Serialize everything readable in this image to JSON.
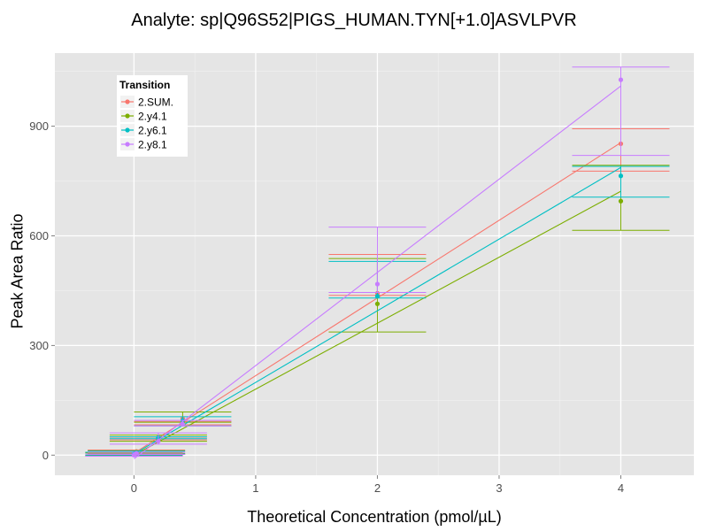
{
  "chart_data": {
    "type": "line",
    "title": "Analyte: sp|Q96S52|PIGS_HUMAN.TYN[+1.0]ASVLPVR",
    "xlabel": "Theoretical Concentration (pmol/µL)",
    "ylabel": "Peak Area Ratio",
    "xlim": [
      -0.65,
      4.6
    ],
    "ylim": [
      -55,
      1100
    ],
    "x_ticks": [
      0,
      1,
      2,
      3,
      4
    ],
    "y_ticks": [
      0,
      300,
      600,
      900
    ],
    "grid": true,
    "legend": {
      "title": "Transition",
      "position": "top-left"
    },
    "series": [
      {
        "name": "2.SUM.",
        "color": "#F8766D",
        "points": [
          {
            "x": 0,
            "y": 2,
            "err_low": -3,
            "err_high": 7,
            "cap_halfwidth": 0.4
          },
          {
            "x": 0.02,
            "y": 10,
            "err_low": 5,
            "err_high": 14,
            "cap_halfwidth": 0.4
          },
          {
            "x": 0.2,
            "y": 45,
            "err_low": 42,
            "err_high": 49,
            "cap_halfwidth": 0.4
          },
          {
            "x": 0.4,
            "y": 100,
            "err_low": 83,
            "err_high": 92,
            "cap_halfwidth": 0.4
          },
          {
            "x": 2,
            "y": 443,
            "err_low": 437,
            "err_high": 549,
            "cap_halfwidth": 0.4
          },
          {
            "x": 4,
            "y": 852,
            "err_low": 777,
            "err_high": 893,
            "cap_halfwidth": 0.4
          }
        ],
        "fit_line": [
          [
            0,
            5
          ],
          [
            4,
            855
          ]
        ]
      },
      {
        "name": "2.y4.1",
        "color": "#7CAE00",
        "points": [
          {
            "x": 0,
            "y": 3,
            "err_low": -1,
            "err_high": 6,
            "cap_halfwidth": 0.4
          },
          {
            "x": 0.02,
            "y": 8,
            "err_low": 4,
            "err_high": 12,
            "cap_halfwidth": 0.4
          },
          {
            "x": 0.2,
            "y": 40,
            "err_low": 38,
            "err_high": 55,
            "cap_halfwidth": 0.4
          },
          {
            "x": 0.4,
            "y": 90,
            "err_low": 90,
            "err_high": 118,
            "cap_halfwidth": 0.4
          },
          {
            "x": 2,
            "y": 414,
            "err_low": 337,
            "err_high": 538,
            "cap_halfwidth": 0.4
          },
          {
            "x": 4,
            "y": 695,
            "err_low": 615,
            "err_high": 793,
            "cap_halfwidth": 0.4
          }
        ],
        "fit_line": [
          [
            0,
            0
          ],
          [
            4,
            722
          ]
        ]
      },
      {
        "name": "2.y6.1",
        "color": "#00BFC4",
        "points": [
          {
            "x": 0,
            "y": 4,
            "err_low": 0,
            "err_high": 8,
            "cap_halfwidth": 0.4
          },
          {
            "x": 0.02,
            "y": 7,
            "err_low": 3,
            "err_high": 11,
            "cap_halfwidth": 0.4
          },
          {
            "x": 0.2,
            "y": 48,
            "err_low": 45,
            "err_high": 50,
            "cap_halfwidth": 0.4
          },
          {
            "x": 0.4,
            "y": 95,
            "err_low": 80,
            "err_high": 105,
            "cap_halfwidth": 0.4
          },
          {
            "x": 2,
            "y": 435,
            "err_low": 430,
            "err_high": 530,
            "cap_halfwidth": 0.4
          },
          {
            "x": 4,
            "y": 764,
            "err_low": 706,
            "err_high": 790,
            "cap_halfwidth": 0.4
          }
        ],
        "fit_line": [
          [
            0,
            3
          ],
          [
            4,
            787
          ]
        ]
      },
      {
        "name": "2.y8.1",
        "color": "#C77CFF",
        "points": [
          {
            "x": 0,
            "y": 0,
            "err_low": -3,
            "err_high": 3,
            "cap_halfwidth": 0.4
          },
          {
            "x": 0.02,
            "y": 5,
            "err_low": 2,
            "err_high": 8,
            "cap_halfwidth": 0.4
          },
          {
            "x": 0.2,
            "y": 38,
            "err_low": 30,
            "err_high": 61,
            "cap_halfwidth": 0.4
          },
          {
            "x": 0.4,
            "y": 85,
            "err_low": 80,
            "err_high": 95,
            "cap_halfwidth": 0.4
          },
          {
            "x": 2,
            "y": 468,
            "err_low": 445,
            "err_high": 624,
            "cap_halfwidth": 0.4
          },
          {
            "x": 4,
            "y": 1027,
            "err_low": 820,
            "err_high": 1062,
            "cap_halfwidth": 0.4
          }
        ],
        "fit_line": [
          [
            0,
            -10
          ],
          [
            4,
            1010
          ]
        ]
      }
    ]
  }
}
